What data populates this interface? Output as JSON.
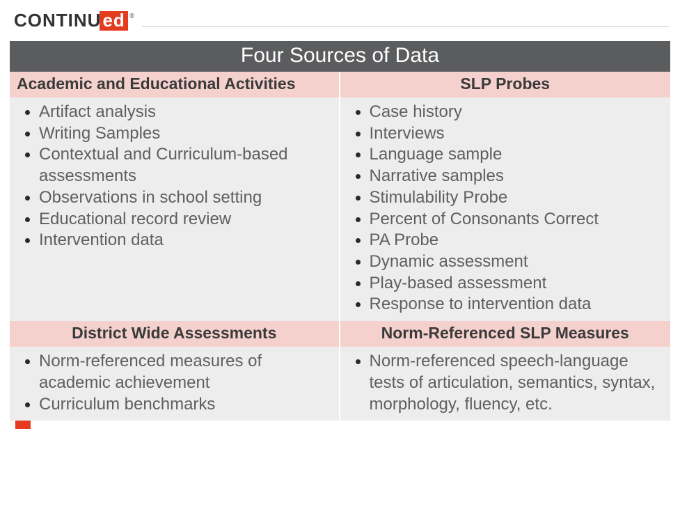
{
  "logo": {
    "part1": "conTinu",
    "part2": "ed",
    "reg": "®"
  },
  "banner": "Four Sources of Data",
  "colors": {
    "banner_bg": "#5b5c5e",
    "banner_text": "#ffffff",
    "header_bg": "#f5d1ce",
    "header_text": "#3a3a3a",
    "body_bg": "#ededed",
    "body_text": "#5f5f5f",
    "logo_accent": "#e43b1f",
    "logo_text": "#323232"
  },
  "table": {
    "rows": [
      {
        "left": {
          "header": "Academic and Educational Activities",
          "items": [
            "Artifact analysis",
            "Writing Samples",
            "Contextual and Curriculum-based assessments",
            "Observations in school setting",
            "Educational record review",
            "Intervention data"
          ]
        },
        "right": {
          "header": "SLP Probes",
          "items": [
            "Case history",
            "Interviews",
            "Language sample",
            "Narrative samples",
            "Stimulability Probe",
            "Percent of Consonants Correct",
            "PA Probe",
            "Dynamic assessment",
            "Play-based assessment",
            "Response to intervention data"
          ]
        }
      },
      {
        "left": {
          "header": "District Wide Assessments",
          "items": [
            "Norm-referenced measures of academic achievement",
            "Curriculum benchmarks"
          ]
        },
        "right": {
          "header": "Norm-Referenced SLP Measures",
          "items": [
            "Norm-referenced speech-language tests of articulation, semantics, syntax, morphology, fluency, etc."
          ]
        }
      }
    ]
  }
}
